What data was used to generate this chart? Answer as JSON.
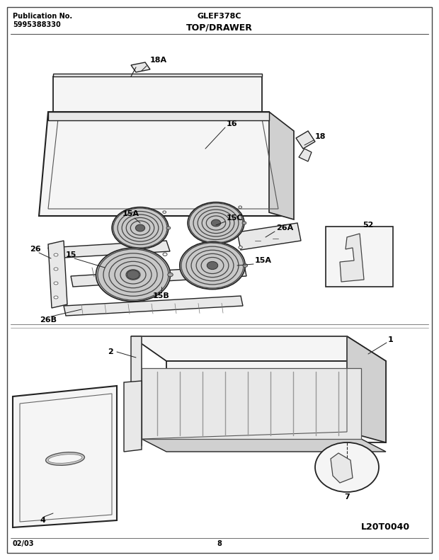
{
  "title": "TOP/DRAWER",
  "pub_label": "Publication No.",
  "pub_number": "5995388330",
  "model": "GLEF378C",
  "diagram_id": "L20T0040",
  "date": "02/03",
  "page": "8",
  "bg_color": "#ffffff",
  "text_color": "#000000",
  "line_color": "#222222",
  "fill_light": "#f5f5f5",
  "fill_mid": "#e8e8e8",
  "fill_dark": "#d0d0d0"
}
